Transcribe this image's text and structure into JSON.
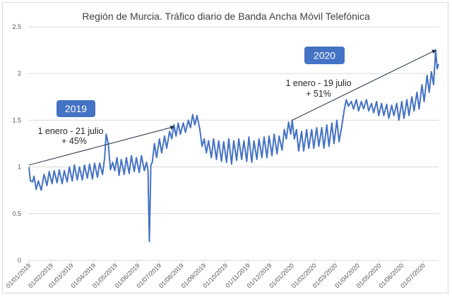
{
  "chart_data": {
    "type": "line",
    "title": "Región de Murcia. Tráfico diario de Banda Ancha Móvil Telefónica",
    "xlabel": "",
    "ylabel": "",
    "ylim": [
      0,
      2.5
    ],
    "yticks": [
      "0",
      "0.5",
      "1",
      "1.5",
      "2",
      "2.5"
    ],
    "ytick_values": [
      0,
      0.5,
      1,
      1.5,
      2,
      2.5
    ],
    "xticks": [
      "01/01/2019",
      "01/02/2019",
      "01/03/2019",
      "01/04/2019",
      "01/05/2019",
      "01/06/2019",
      "01/07/2019",
      "01/08/2019",
      "01/09/2019",
      "01/10/2019",
      "01/11/2019",
      "01/12/2019",
      "01/01/2020",
      "01/02/2020",
      "01/03/2020",
      "01/04/2020",
      "01/05/2020",
      "01/06/2020",
      "01/07/2020"
    ],
    "xlim": [
      "2019-01-01",
      "2020-07-22"
    ],
    "grid": "horizontal",
    "legend": "none",
    "line_color": "#4472C4",
    "series": [
      {
        "points": [
          [
            "2019-01-01",
            1.0
          ],
          [
            "2019-01-03",
            0.85
          ],
          [
            "2019-01-06",
            0.84
          ],
          [
            "2019-01-08",
            0.9
          ],
          [
            "2019-01-11",
            0.76
          ],
          [
            "2019-01-14",
            0.85
          ],
          [
            "2019-01-18",
            0.75
          ],
          [
            "2019-01-22",
            0.92
          ],
          [
            "2019-01-26",
            0.8
          ],
          [
            "2019-01-29",
            0.95
          ],
          [
            "2019-02-02",
            0.82
          ],
          [
            "2019-02-05",
            0.96
          ],
          [
            "2019-02-09",
            0.83
          ],
          [
            "2019-02-12",
            0.97
          ],
          [
            "2019-02-16",
            0.82
          ],
          [
            "2019-02-19",
            0.96
          ],
          [
            "2019-02-23",
            0.84
          ],
          [
            "2019-02-26",
            1.0
          ],
          [
            "2019-03-02",
            0.85
          ],
          [
            "2019-03-05",
            1.02
          ],
          [
            "2019-03-09",
            0.86
          ],
          [
            "2019-03-12",
            1.0
          ],
          [
            "2019-03-16",
            0.86
          ],
          [
            "2019-03-19",
            1.02
          ],
          [
            "2019-03-23",
            0.88
          ],
          [
            "2019-03-26",
            1.03
          ],
          [
            "2019-03-30",
            0.87
          ],
          [
            "2019-04-02",
            1.04
          ],
          [
            "2019-04-06",
            0.89
          ],
          [
            "2019-04-09",
            1.04
          ],
          [
            "2019-04-13",
            0.92
          ],
          [
            "2019-04-16",
            1.1
          ],
          [
            "2019-04-18",
            1.35
          ],
          [
            "2019-04-21",
            1.25
          ],
          [
            "2019-04-24",
            0.97
          ],
          [
            "2019-04-27",
            1.05
          ],
          [
            "2019-04-30",
            0.96
          ],
          [
            "2019-05-03",
            1.1
          ],
          [
            "2019-05-06",
            0.91
          ],
          [
            "2019-05-09",
            1.08
          ],
          [
            "2019-05-13",
            0.92
          ],
          [
            "2019-05-16",
            1.1
          ],
          [
            "2019-05-20",
            0.93
          ],
          [
            "2019-05-23",
            1.12
          ],
          [
            "2019-05-27",
            0.95
          ],
          [
            "2019-05-30",
            1.1
          ],
          [
            "2019-06-03",
            0.94
          ],
          [
            "2019-06-06",
            1.12
          ],
          [
            "2019-06-10",
            0.96
          ],
          [
            "2019-06-13",
            1.05
          ],
          [
            "2019-06-15",
            0.97
          ],
          [
            "2019-06-17",
            0.2
          ],
          [
            "2019-06-19",
            1.02
          ],
          [
            "2019-06-21",
            1.05
          ],
          [
            "2019-06-24",
            1.25
          ],
          [
            "2019-06-27",
            1.1
          ],
          [
            "2019-07-01",
            1.3
          ],
          [
            "2019-07-04",
            1.15
          ],
          [
            "2019-07-08",
            1.33
          ],
          [
            "2019-07-11",
            1.2
          ],
          [
            "2019-07-15",
            1.38
          ],
          [
            "2019-07-18",
            1.3
          ],
          [
            "2019-07-21",
            1.45
          ],
          [
            "2019-07-24",
            1.33
          ],
          [
            "2019-07-27",
            1.47
          ],
          [
            "2019-07-30",
            1.35
          ],
          [
            "2019-08-03",
            1.47
          ],
          [
            "2019-08-06",
            1.37
          ],
          [
            "2019-08-10",
            1.5
          ],
          [
            "2019-08-13",
            1.42
          ],
          [
            "2019-08-16",
            1.56
          ],
          [
            "2019-08-19",
            1.45
          ],
          [
            "2019-08-22",
            1.55
          ],
          [
            "2019-08-26",
            1.4
          ],
          [
            "2019-08-29",
            1.22
          ],
          [
            "2019-09-01",
            1.3
          ],
          [
            "2019-09-04",
            1.15
          ],
          [
            "2019-09-07",
            1.28
          ],
          [
            "2019-09-11",
            1.1
          ],
          [
            "2019-09-14",
            1.3
          ],
          [
            "2019-09-18",
            1.08
          ],
          [
            "2019-09-21",
            1.28
          ],
          [
            "2019-09-25",
            1.06
          ],
          [
            "2019-09-28",
            1.27
          ],
          [
            "2019-10-02",
            1.05
          ],
          [
            "2019-10-05",
            1.3
          ],
          [
            "2019-10-09",
            1.03
          ],
          [
            "2019-10-12",
            1.28
          ],
          [
            "2019-10-16",
            1.07
          ],
          [
            "2019-10-19",
            1.3
          ],
          [
            "2019-10-23",
            1.08
          ],
          [
            "2019-10-26",
            1.28
          ],
          [
            "2019-10-30",
            1.06
          ],
          [
            "2019-11-02",
            1.32
          ],
          [
            "2019-11-06",
            1.05
          ],
          [
            "2019-11-09",
            1.28
          ],
          [
            "2019-11-13",
            1.08
          ],
          [
            "2019-11-16",
            1.3
          ],
          [
            "2019-11-20",
            1.1
          ],
          [
            "2019-11-23",
            1.32
          ],
          [
            "2019-11-27",
            1.1
          ],
          [
            "2019-11-30",
            1.33
          ],
          [
            "2019-12-04",
            1.12
          ],
          [
            "2019-12-07",
            1.35
          ],
          [
            "2019-12-11",
            1.14
          ],
          [
            "2019-12-14",
            1.33
          ],
          [
            "2019-12-18",
            1.18
          ],
          [
            "2019-12-21",
            1.4
          ],
          [
            "2019-12-24",
            1.3
          ],
          [
            "2019-12-27",
            1.48
          ],
          [
            "2019-12-30",
            1.35
          ],
          [
            "2020-01-01",
            1.5
          ],
          [
            "2020-01-04",
            1.3
          ],
          [
            "2020-01-07",
            1.4
          ],
          [
            "2020-01-10",
            1.17
          ],
          [
            "2020-01-14",
            1.38
          ],
          [
            "2020-01-17",
            1.17
          ],
          [
            "2020-01-21",
            1.4
          ],
          [
            "2020-01-24",
            1.2
          ],
          [
            "2020-01-28",
            1.4
          ],
          [
            "2020-01-31",
            1.2
          ],
          [
            "2020-02-04",
            1.42
          ],
          [
            "2020-02-07",
            1.22
          ],
          [
            "2020-02-11",
            1.42
          ],
          [
            "2020-02-14",
            1.2
          ],
          [
            "2020-02-18",
            1.45
          ],
          [
            "2020-02-21",
            1.22
          ],
          [
            "2020-02-25",
            1.47
          ],
          [
            "2020-02-28",
            1.25
          ],
          [
            "2020-03-03",
            1.5
          ],
          [
            "2020-03-06",
            1.27
          ],
          [
            "2020-03-10",
            1.45
          ],
          [
            "2020-03-13",
            1.6
          ],
          [
            "2020-03-16",
            1.72
          ],
          [
            "2020-03-19",
            1.65
          ],
          [
            "2020-03-23",
            1.7
          ],
          [
            "2020-03-26",
            1.62
          ],
          [
            "2020-03-30",
            1.72
          ],
          [
            "2020-04-02",
            1.6
          ],
          [
            "2020-04-06",
            1.7
          ],
          [
            "2020-04-09",
            1.62
          ],
          [
            "2020-04-13",
            1.72
          ],
          [
            "2020-04-16",
            1.6
          ],
          [
            "2020-04-20",
            1.68
          ],
          [
            "2020-04-23",
            1.58
          ],
          [
            "2020-04-27",
            1.7
          ],
          [
            "2020-04-30",
            1.55
          ],
          [
            "2020-05-04",
            1.68
          ],
          [
            "2020-05-07",
            1.55
          ],
          [
            "2020-05-11",
            1.67
          ],
          [
            "2020-05-14",
            1.52
          ],
          [
            "2020-05-18",
            1.66
          ],
          [
            "2020-05-21",
            1.55
          ],
          [
            "2020-05-25",
            1.68
          ],
          [
            "2020-05-28",
            1.5
          ],
          [
            "2020-06-01",
            1.7
          ],
          [
            "2020-06-04",
            1.52
          ],
          [
            "2020-06-08",
            1.72
          ],
          [
            "2020-06-11",
            1.55
          ],
          [
            "2020-06-15",
            1.75
          ],
          [
            "2020-06-18",
            1.6
          ],
          [
            "2020-06-22",
            1.8
          ],
          [
            "2020-06-25",
            1.62
          ],
          [
            "2020-06-29",
            1.88
          ],
          [
            "2020-07-02",
            1.7
          ],
          [
            "2020-07-06",
            1.98
          ],
          [
            "2020-07-09",
            1.8
          ],
          [
            "2020-07-12",
            2.02
          ],
          [
            "2020-07-15",
            1.88
          ],
          [
            "2020-07-18",
            2.25
          ],
          [
            "2020-07-20",
            2.05
          ],
          [
            "2020-07-22",
            2.1
          ]
        ]
      }
    ],
    "annotations": [
      {
        "label": "2019",
        "text_line1": "1 enero - 21 julio",
        "text_line2": "+ 45%",
        "arrow_from": [
          "2019-01-01",
          1.02
        ],
        "arrow_to": [
          "2019-07-21",
          1.43
        ],
        "box_color": "#4472C4"
      },
      {
        "label": "2020",
        "text_line1": "1 enero - 19 julio",
        "text_line2": "+ 51%",
        "arrow_from": [
          "2020-01-01",
          1.5
        ],
        "arrow_to": [
          "2020-07-18",
          2.25
        ],
        "box_color": "#4472C4"
      }
    ]
  }
}
